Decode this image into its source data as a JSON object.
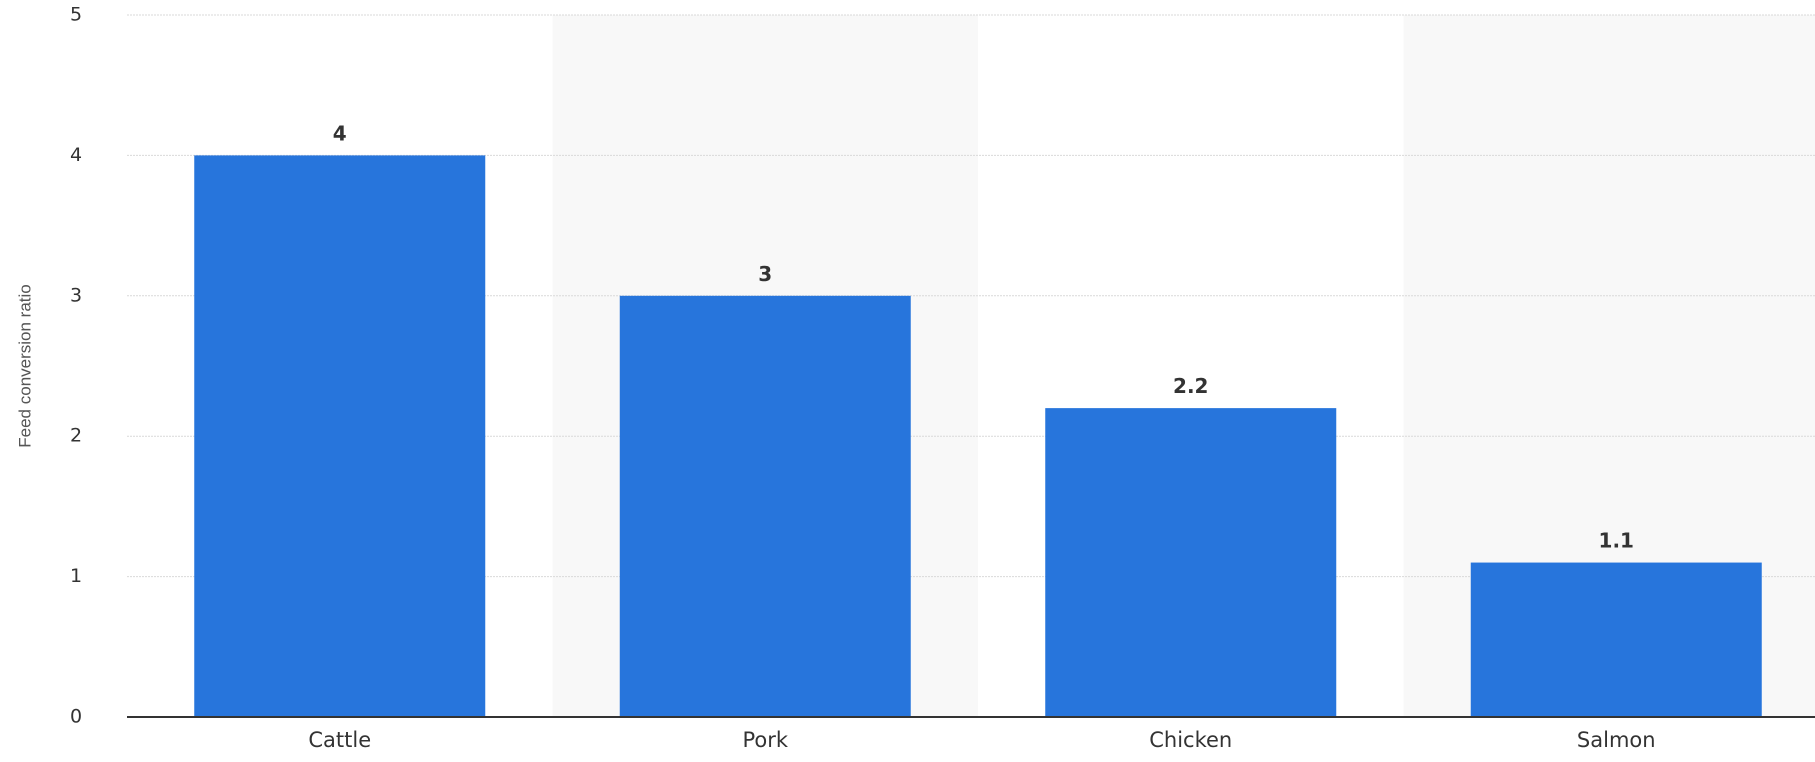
{
  "chart_data": {
    "type": "bar",
    "categories": [
      "Cattle",
      "Pork",
      "Chicken",
      "Salmon"
    ],
    "values": [
      4,
      3,
      2.2,
      1.1
    ],
    "data_labels": [
      "4",
      "3",
      "2.2",
      "1.1"
    ],
    "title": "",
    "xlabel": "",
    "ylabel": "Feed conversion ratio",
    "ylim": [
      0,
      5
    ],
    "yticks": [
      0,
      1,
      2,
      3,
      4,
      5
    ],
    "ytick_labels": [
      "0",
      "1",
      "2",
      "3",
      "4",
      "5"
    ],
    "grid": true,
    "legend": "none",
    "colors": {
      "bar": "#2775dc",
      "band": "#f8f8f8",
      "grid": "#d9d9d9",
      "axis": "#333333"
    }
  }
}
